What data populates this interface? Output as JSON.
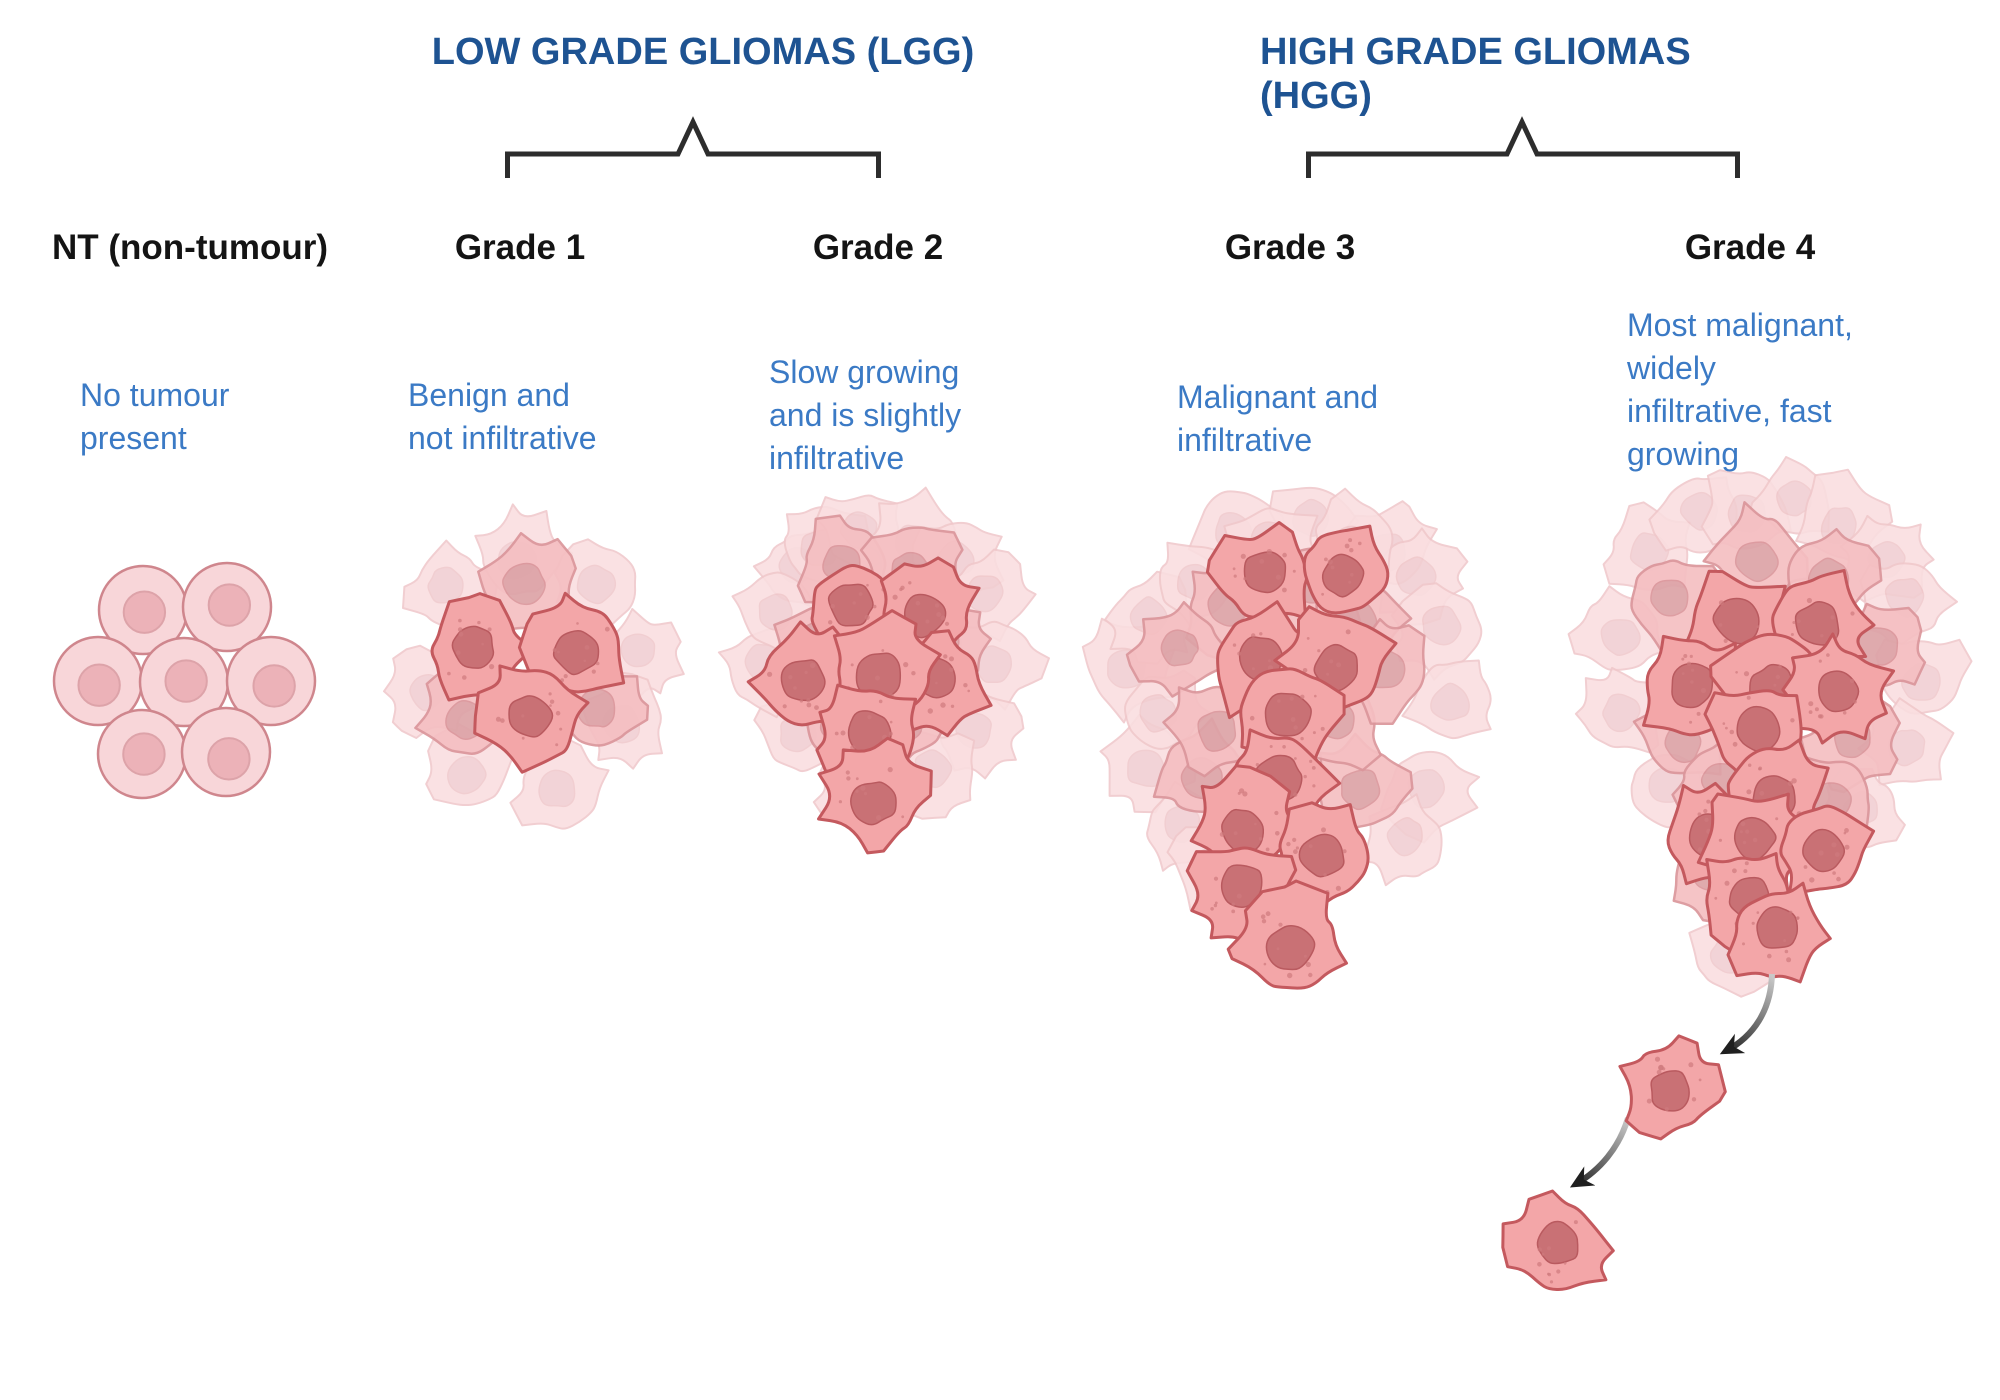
{
  "groups": {
    "lgg": {
      "title": "LOW GRADE GLIOMAS (LGG)"
    },
    "hgg": {
      "title_lines": [
        "HIGH GRADE GLIOMAS",
        "(HGG)"
      ]
    }
  },
  "columns": [
    {
      "id": "nt",
      "header": "NT (non-tumour)",
      "desc_lines": [
        "No tumour",
        "present"
      ],
      "illustration": "normal-cell-cluster"
    },
    {
      "id": "grade1",
      "header": "Grade 1",
      "desc_lines": [
        "Benign and",
        "not infiltrative"
      ],
      "illustration": "small-tumour-cell-cluster"
    },
    {
      "id": "grade2",
      "header": "Grade 2",
      "desc_lines": [
        "Slow growing",
        "and is slightly",
        "infiltrative"
      ],
      "illustration": "medium-tumour-cell-cluster"
    },
    {
      "id": "grade3",
      "header": "Grade 3",
      "desc_lines": [
        "Malignant and",
        "infiltrative"
      ],
      "illustration": "large-tumour-cell-cluster-with-breakaway-cells"
    },
    {
      "id": "grade4",
      "header": "Grade 4",
      "desc_lines": [
        "Most malignant,",
        "widely",
        "infiltrative, fast",
        "growing"
      ],
      "illustration": "largest-tumour-cell-cluster-with-metastasising-cells"
    }
  ],
  "colors": {
    "group_title_blue": "#1e5392",
    "description_blue": "#3b7ac5",
    "header_black": "#141414",
    "bracket_black": "#2d2d2d",
    "arrow_dark": "#1f1f1f",
    "arrow_fade": "#c9c9c9",
    "normal_cell_body": "#f8d6d9",
    "normal_cell_border": "#cf868d",
    "normal_cell_nucleus": "#ecb2b8",
    "normal_cell_nucleus_border": "#dda3a9",
    "tumour_cell_body": "#f3a6a8",
    "tumour_cell_border": "#c4595e",
    "tumour_cell_nucleus": "#c97175",
    "tumour_cell_nucleus_border": "#b95a5f",
    "tumour_cell_speckle": "#cf7a7e",
    "faded_cell_body": "#fadee0",
    "faded_cell_border": "#f0c8cb",
    "faded_cell_nucleus": "#f1ced2",
    "medium_cell_body": "#f5bfc2",
    "medium_cell_border": "#db969b",
    "medium_cell_nucleus": "#dda3a7"
  }
}
